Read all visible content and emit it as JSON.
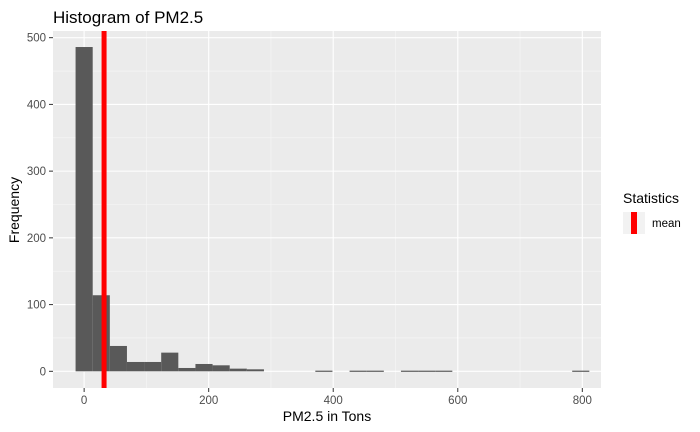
{
  "chart_data": {
    "type": "bar",
    "title": "Histogram of PM2.5",
    "xlabel": "PM2.5 in Tons",
    "ylabel": "Frequency",
    "xlim": [
      -50,
      830
    ],
    "ylim": [
      -25,
      510
    ],
    "x_ticks": [
      0,
      200,
      400,
      600,
      800
    ],
    "y_ticks": [
      0,
      100,
      200,
      300,
      400,
      500
    ],
    "bin_width": 27.5,
    "bins": [
      {
        "x_start": -13.75,
        "x_end": 13.75,
        "count": 486
      },
      {
        "x_start": 13.75,
        "x_end": 41.25,
        "count": 114
      },
      {
        "x_start": 41.25,
        "x_end": 68.75,
        "count": 38
      },
      {
        "x_start": 68.75,
        "x_end": 96.25,
        "count": 14
      },
      {
        "x_start": 96.25,
        "x_end": 123.75,
        "count": 14
      },
      {
        "x_start": 123.75,
        "x_end": 151.25,
        "count": 28
      },
      {
        "x_start": 151.25,
        "x_end": 178.75,
        "count": 5
      },
      {
        "x_start": 178.75,
        "x_end": 206.25,
        "count": 11
      },
      {
        "x_start": 206.25,
        "x_end": 233.75,
        "count": 9
      },
      {
        "x_start": 233.75,
        "x_end": 261.25,
        "count": 4
      },
      {
        "x_start": 261.25,
        "x_end": 288.75,
        "count": 3
      },
      {
        "x_start": 371.25,
        "x_end": 398.75,
        "count": 1
      },
      {
        "x_start": 426.25,
        "x_end": 453.75,
        "count": 1
      },
      {
        "x_start": 453.75,
        "x_end": 481.25,
        "count": 1
      },
      {
        "x_start": 508.75,
        "x_end": 536.25,
        "count": 1
      },
      {
        "x_start": 536.25,
        "x_end": 563.75,
        "count": 1
      },
      {
        "x_start": 563.75,
        "x_end": 591.25,
        "count": 1
      },
      {
        "x_start": 783.75,
        "x_end": 811.25,
        "count": 1
      }
    ],
    "mean_line": {
      "x": 32,
      "label": "mean",
      "color": "#ff0000"
    },
    "legend": {
      "title": "Statistics",
      "position": "right"
    },
    "bar_color": "#595959",
    "panel_color": "#ebebeb",
    "grid": true
  }
}
